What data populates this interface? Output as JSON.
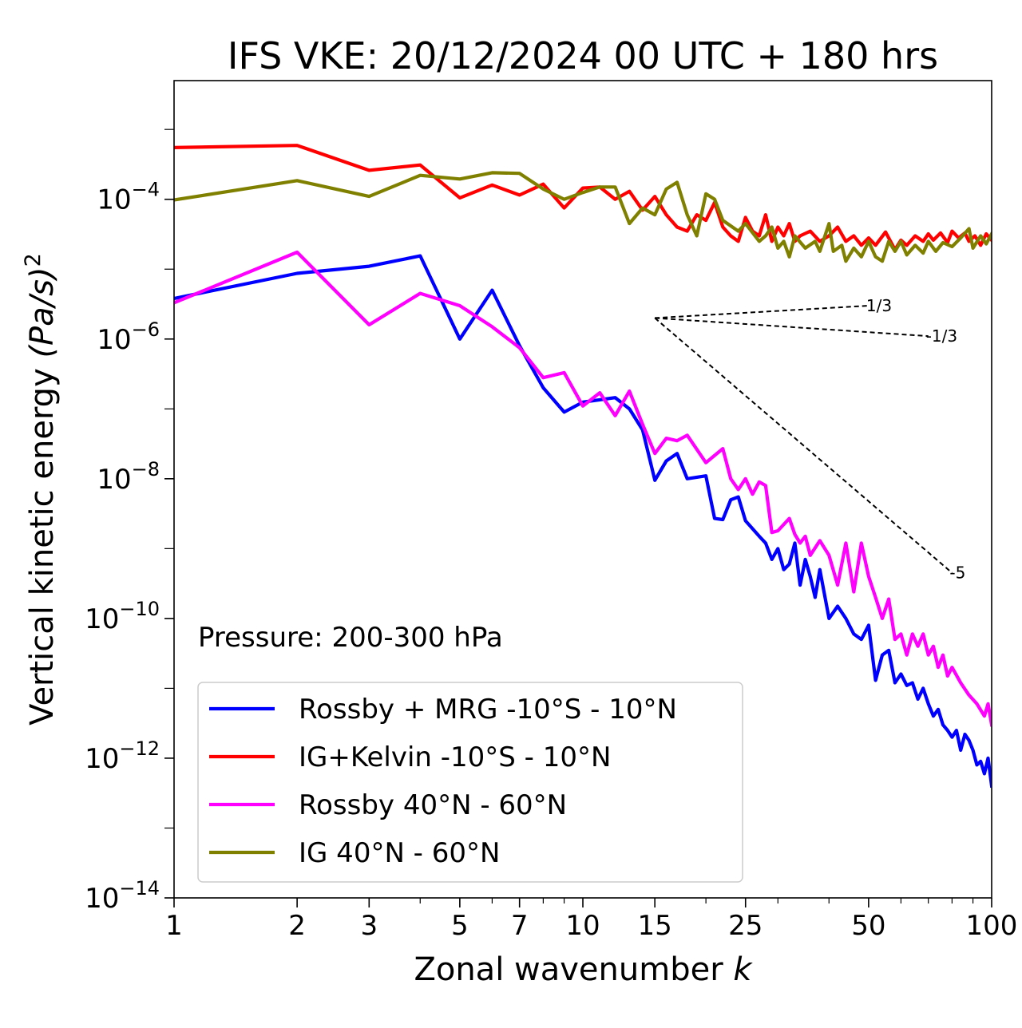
{
  "chart_data": {
    "type": "line",
    "title": "IFS VKE: 20/12/2024 00 UTC + 180 hrs",
    "xlabel": "Zonal wavenumber",
    "xlabel_var": "k",
    "ylabel": "Vertical kinetic energy",
    "ylabel_unit": "(Pa/s)",
    "ylabel_exp": "2",
    "x_scale": "log",
    "y_scale": "log",
    "xlim": [
      1,
      100
    ],
    "ylim": [
      1e-14,
      0.005
    ],
    "xticks": [
      1,
      2,
      3,
      5,
      7,
      10,
      15,
      25,
      50,
      100
    ],
    "xtick_labels": [
      "1",
      "2",
      "3",
      "5",
      "7",
      "10",
      "15",
      "25",
      "50",
      "100"
    ],
    "yticks": [
      1e-14,
      1e-12,
      1e-10,
      1e-08,
      1e-06,
      0.0001
    ],
    "ytick_labels": [
      {
        "base": "10",
        "exp": "−14"
      },
      {
        "base": "10",
        "exp": "−12"
      },
      {
        "base": "10",
        "exp": "−10"
      },
      {
        "base": "10",
        "exp": "−8"
      },
      {
        "base": "10",
        "exp": "−6"
      },
      {
        "base": "10",
        "exp": "−4"
      }
    ],
    "annotation": "Pressure: 200-300 hPa",
    "legend_position": "lower-left",
    "grid": false,
    "series": [
      {
        "name": "Rossby + MRG -10°S - 10°N",
        "color": "#0000ff",
        "points": [
          [
            1,
            3.8e-06
          ],
          [
            2,
            8.7e-06
          ],
          [
            3,
            1.1e-05
          ],
          [
            4,
            1.55e-05
          ],
          [
            5,
            1e-06
          ],
          [
            6,
            5e-06
          ],
          [
            7,
            8e-07
          ],
          [
            8,
            2e-07
          ],
          [
            9,
            9e-08
          ],
          [
            10,
            1.25e-07
          ],
          [
            11,
            1.35e-07
          ],
          [
            12,
            1.45e-07
          ],
          [
            13,
            1e-07
          ],
          [
            14,
            5e-08
          ],
          [
            15,
            9.5e-09
          ],
          [
            16,
            1.8e-08
          ],
          [
            17,
            2.3e-08
          ],
          [
            18,
            1e-08
          ],
          [
            20,
            1.1e-08
          ],
          [
            21,
            2.7e-09
          ],
          [
            22,
            2.6e-09
          ],
          [
            23,
            5e-09
          ],
          [
            24,
            5.5e-09
          ],
          [
            25,
            2.5e-09
          ],
          [
            27,
            1.5e-09
          ],
          [
            28,
            1.2e-09
          ],
          [
            29,
            7e-10
          ],
          [
            30,
            1e-09
          ],
          [
            31,
            5e-10
          ],
          [
            32,
            6e-10
          ],
          [
            33,
            1.2e-09
          ],
          [
            34,
            3e-10
          ],
          [
            35,
            7e-10
          ],
          [
            36,
            4e-10
          ],
          [
            37,
            2e-10
          ],
          [
            38,
            5e-10
          ],
          [
            40,
            1e-10
          ],
          [
            42,
            1.5e-10
          ],
          [
            44,
            1e-10
          ],
          [
            46,
            6e-11
          ],
          [
            48,
            5e-11
          ],
          [
            50,
            8e-11
          ],
          [
            52,
            1.3e-11
          ],
          [
            54,
            3e-11
          ],
          [
            56,
            3.5e-11
          ],
          [
            58,
            1.2e-11
          ],
          [
            60,
            1.6e-11
          ],
          [
            62,
            1.1e-11
          ],
          [
            64,
            1.2e-11
          ],
          [
            66,
            7e-12
          ],
          [
            68,
            1e-11
          ],
          [
            70,
            6e-12
          ],
          [
            72,
            4e-12
          ],
          [
            74,
            5e-12
          ],
          [
            76,
            3e-12
          ],
          [
            78,
            2.5e-12
          ],
          [
            80,
            2e-12
          ],
          [
            82,
            2.5e-12
          ],
          [
            84,
            1.3e-12
          ],
          [
            86,
            2.2e-12
          ],
          [
            88,
            1.8e-12
          ],
          [
            90,
            1.3e-12
          ],
          [
            92,
            8e-13
          ],
          [
            94,
            9e-13
          ],
          [
            96,
            6e-13
          ],
          [
            98,
            1e-12
          ],
          [
            100,
            4e-13
          ]
        ]
      },
      {
        "name": "IG+Kelvin -10°S - 10°N",
        "color": "#ff0000",
        "points": [
          [
            1,
            0.00055
          ],
          [
            2,
            0.00059
          ],
          [
            3,
            0.00026
          ],
          [
            4,
            0.00031
          ],
          [
            5,
            0.000105
          ],
          [
            6,
            0.00016
          ],
          [
            7,
            0.000115
          ],
          [
            8,
            0.000165
          ],
          [
            9,
            7.5e-05
          ],
          [
            10,
            0.000145
          ],
          [
            11,
            0.00015
          ],
          [
            12,
            0.0001
          ],
          [
            13,
            0.00013
          ],
          [
            14,
            7e-05
          ],
          [
            15,
            0.00011
          ],
          [
            16,
            6e-05
          ],
          [
            17,
            4e-05
          ],
          [
            18,
            3.5e-05
          ],
          [
            19,
            6e-05
          ],
          [
            20,
            5e-05
          ],
          [
            21,
            9e-05
          ],
          [
            22,
            4e-05
          ],
          [
            23,
            3e-05
          ],
          [
            24,
            2.5e-05
          ],
          [
            25,
            5.5e-05
          ],
          [
            26,
            3.5e-05
          ],
          [
            27,
            3e-05
          ],
          [
            28,
            6e-05
          ],
          [
            29,
            2.5e-05
          ],
          [
            30,
            4e-05
          ],
          [
            31,
            3e-05
          ],
          [
            32,
            4.5e-05
          ],
          [
            33,
            2.5e-05
          ],
          [
            34,
            3e-05
          ],
          [
            36,
            3.5e-05
          ],
          [
            38,
            2.5e-05
          ],
          [
            40,
            3e-05
          ],
          [
            42,
            4e-05
          ],
          [
            44,
            2.5e-05
          ],
          [
            46,
            3e-05
          ],
          [
            48,
            2.2e-05
          ],
          [
            50,
            2.8e-05
          ],
          [
            52,
            2.2e-05
          ],
          [
            55,
            3.4e-05
          ],
          [
            58,
            1.9e-05
          ],
          [
            60,
            2.6e-05
          ],
          [
            62,
            2.2e-05
          ],
          [
            65,
            3e-05
          ],
          [
            68,
            2.5e-05
          ],
          [
            70,
            3.2e-05
          ],
          [
            72,
            2.6e-05
          ],
          [
            75,
            3.3e-05
          ],
          [
            78,
            2.4e-05
          ],
          [
            80,
            3.5e-05
          ],
          [
            83,
            2.8e-05
          ],
          [
            86,
            3.3e-05
          ],
          [
            88,
            2.5e-05
          ],
          [
            91,
            3e-05
          ],
          [
            94,
            2.2e-05
          ],
          [
            97,
            3.2e-05
          ],
          [
            100,
            2.6e-05
          ]
        ]
      },
      {
        "name": "Rossby 40°N - 60°N",
        "color": "#ff00ff",
        "points": [
          [
            1,
            3.3e-06
          ],
          [
            2,
            1.75e-05
          ],
          [
            3,
            1.6e-06
          ],
          [
            4,
            4.5e-06
          ],
          [
            5,
            3e-06
          ],
          [
            6,
            1.5e-06
          ],
          [
            7,
            7.5e-07
          ],
          [
            8,
            2.8e-07
          ],
          [
            9,
            3.3e-07
          ],
          [
            10,
            1.1e-07
          ],
          [
            11,
            1.7e-07
          ],
          [
            12,
            8e-08
          ],
          [
            13,
            1.8e-07
          ],
          [
            14,
            6e-08
          ],
          [
            15,
            2.3e-08
          ],
          [
            16,
            3.8e-08
          ],
          [
            17,
            3.5e-08
          ],
          [
            18,
            4.2e-08
          ],
          [
            20,
            1.7e-08
          ],
          [
            22,
            2.7e-08
          ],
          [
            23,
            1e-08
          ],
          [
            24,
            7e-09
          ],
          [
            25,
            1e-08
          ],
          [
            26,
            6e-09
          ],
          [
            27,
            9e-09
          ],
          [
            28,
            8e-09
          ],
          [
            29,
            1.7e-09
          ],
          [
            30,
            1.8e-09
          ],
          [
            32,
            2.7e-09
          ],
          [
            33,
            1.6e-09
          ],
          [
            34,
            1.2e-09
          ],
          [
            35,
            1.5e-09
          ],
          [
            36,
            8e-10
          ],
          [
            38,
            1.3e-09
          ],
          [
            40,
            8e-10
          ],
          [
            42,
            3e-10
          ],
          [
            44,
            1.2e-09
          ],
          [
            46,
            2.4e-10
          ],
          [
            48,
            1.2e-09
          ],
          [
            50,
            4e-10
          ],
          [
            52,
            2e-10
          ],
          [
            54,
            1e-10
          ],
          [
            56,
            1.9e-10
          ],
          [
            58,
            5e-11
          ],
          [
            60,
            6e-11
          ],
          [
            62,
            3e-11
          ],
          [
            64,
            6e-11
          ],
          [
            66,
            4e-11
          ],
          [
            68,
            6e-11
          ],
          [
            70,
            3e-11
          ],
          [
            72,
            4e-11
          ],
          [
            74,
            2e-11
          ],
          [
            76,
            3e-11
          ],
          [
            78,
            1.5e-11
          ],
          [
            80,
            2e-11
          ],
          [
            84,
            1.2e-11
          ],
          [
            88,
            8e-12
          ],
          [
            92,
            6e-12
          ],
          [
            96,
            4e-12
          ],
          [
            98,
            6e-12
          ],
          [
            100,
            3e-12
          ]
        ]
      },
      {
        "name": "IG 40°N - 60°N",
        "color": "#808000",
        "points": [
          [
            1,
            9.8e-05
          ],
          [
            2,
            0.000185
          ],
          [
            3,
            0.00011
          ],
          [
            4,
            0.00022
          ],
          [
            5,
            0.000195
          ],
          [
            6,
            0.00024
          ],
          [
            7,
            0.000235
          ],
          [
            8,
            0.00014
          ],
          [
            9,
            0.0001
          ],
          [
            10,
            0.000125
          ],
          [
            11,
            0.00015
          ],
          [
            12,
            0.00015
          ],
          [
            13,
            4.5e-05
          ],
          [
            14,
            7.5e-05
          ],
          [
            15,
            6e-05
          ],
          [
            16,
            0.00014
          ],
          [
            17,
            0.000175
          ],
          [
            18,
            6e-05
          ],
          [
            19,
            3e-05
          ],
          [
            20,
            0.00012
          ],
          [
            21,
            0.0001
          ],
          [
            22,
            5e-05
          ],
          [
            24,
            3.5e-05
          ],
          [
            25,
            4.5e-05
          ],
          [
            27,
            2.5e-05
          ],
          [
            28,
            3e-05
          ],
          [
            29,
            4e-05
          ],
          [
            30,
            2e-05
          ],
          [
            31,
            2.5e-05
          ],
          [
            32,
            1.5e-05
          ],
          [
            33,
            3e-05
          ],
          [
            35,
            2e-05
          ],
          [
            37,
            2.5e-05
          ],
          [
            38,
            1.8e-05
          ],
          [
            40,
            4.5e-05
          ],
          [
            41,
            1.8e-05
          ],
          [
            43,
            2.2e-05
          ],
          [
            44,
            1.3e-05
          ],
          [
            46,
            2e-05
          ],
          [
            48,
            1.5e-05
          ],
          [
            50,
            2.5e-05
          ],
          [
            52,
            1.5e-05
          ],
          [
            54,
            1.3e-05
          ],
          [
            56,
            2.5e-05
          ],
          [
            58,
            1.8e-05
          ],
          [
            60,
            2.5e-05
          ],
          [
            62,
            1.6e-05
          ],
          [
            65,
            2.2e-05
          ],
          [
            68,
            1.7e-05
          ],
          [
            70,
            2.5e-05
          ],
          [
            73,
            1.8e-05
          ],
          [
            76,
            2.4e-05
          ],
          [
            80,
            2.1e-05
          ],
          [
            84,
            2.8e-05
          ],
          [
            88,
            3.8e-05
          ],
          [
            90,
            2e-05
          ],
          [
            94,
            3e-05
          ],
          [
            97,
            2.3e-05
          ],
          [
            100,
            3.2e-05
          ]
        ]
      }
    ],
    "slope_lines": [
      {
        "label": "1/3",
        "start": [
          15,
          2e-06
        ],
        "end": [
          50,
          3e-06
        ]
      },
      {
        "label": "-1/3",
        "start": [
          15,
          2e-06
        ],
        "end": [
          70,
          1.1e-06
        ]
      },
      {
        "label": "-5",
        "start": [
          15,
          2e-06
        ],
        "end": [
          80,
          4.5e-10
        ]
      }
    ]
  }
}
